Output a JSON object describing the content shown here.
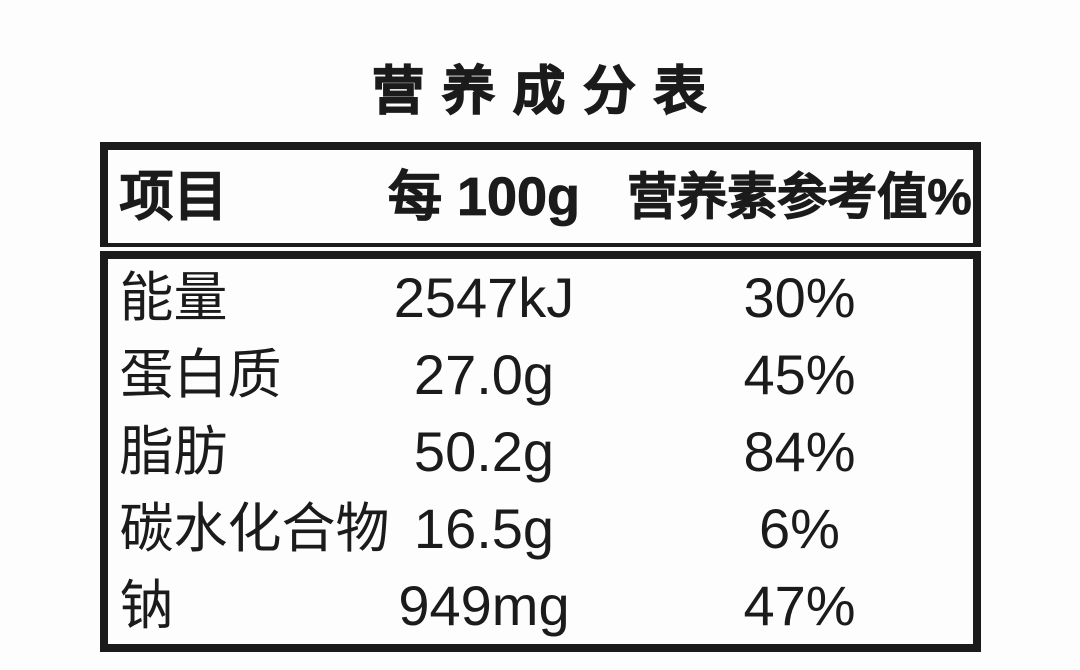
{
  "title": "营 养 成 分 表",
  "table": {
    "columns": [
      {
        "key": "item",
        "label": "项目"
      },
      {
        "key": "per_100g",
        "label": "每 100g"
      },
      {
        "key": "nrv",
        "label": "营养素参考值%"
      }
    ],
    "rows": [
      {
        "item": "能量",
        "per_100g": "2547kJ",
        "nrv": "30%"
      },
      {
        "item": "蛋白质",
        "per_100g": "27.0g",
        "nrv": "45%"
      },
      {
        "item": "脂肪",
        "per_100g": "50.2g",
        "nrv": "84%"
      },
      {
        "item": "碳水化合物",
        "per_100g": "16.5g",
        "nrv": "6%"
      },
      {
        "item": "钠",
        "per_100g": "949mg",
        "nrv": "47%"
      }
    ]
  },
  "colors": {
    "text": "#1b1b1b",
    "border": "#1b1b1b",
    "background": "#fdfdfd"
  }
}
